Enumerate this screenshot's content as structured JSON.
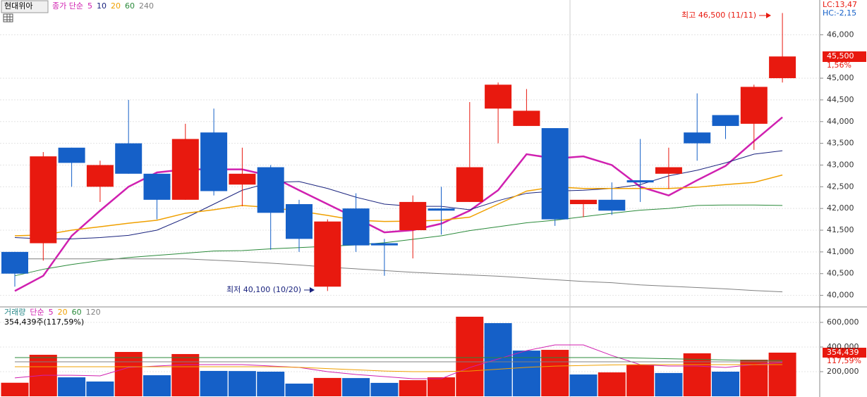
{
  "chart_data": [
    {
      "type": "candlestick",
      "title": "현대위아",
      "legend_prefix": "종가 단순",
      "open": [
        41000,
        41200,
        43400,
        42500,
        43500,
        42800,
        42200,
        43750,
        42550,
        42950,
        42100,
        40200,
        42000,
        41200,
        41500,
        42000,
        42150,
        44300,
        43900,
        43850,
        42100,
        42200,
        42650,
        42800,
        43750,
        44150,
        43950,
        45000
      ],
      "high": [
        41000,
        43300,
        43400,
        43100,
        44500,
        42800,
        43950,
        44300,
        43400,
        43000,
        42200,
        41750,
        42350,
        41300,
        42300,
        42500,
        44450,
        44900,
        44750,
        43850,
        42200,
        42600,
        43600,
        43400,
        44650,
        44150,
        44850,
        46500
      ],
      "low": [
        40200,
        40800,
        42500,
        42150,
        42800,
        41750,
        42200,
        42300,
        42050,
        41050,
        41000,
        40100,
        41000,
        40450,
        40850,
        41400,
        42150,
        43500,
        43900,
        41600,
        41800,
        41850,
        42150,
        42450,
        43100,
        43600,
        43350,
        44900
      ],
      "close": [
        40500,
        43200,
        43050,
        43000,
        42800,
        42200,
        43600,
        42400,
        42800,
        41900,
        41300,
        41700,
        41150,
        41150,
        42150,
        41950,
        42950,
        44850,
        44250,
        41750,
        42200,
        41950,
        42600,
        42950,
        43500,
        43900,
        44800,
        45500
      ],
      "up_color": "#e8190f",
      "down_color": "#1560c8",
      "series": [
        {
          "name": "5",
          "color": "#d020b0",
          "values": [
            40100,
            40450,
            41370,
            41950,
            42500,
            42830,
            42900,
            42900,
            42900,
            42750,
            42420,
            42100,
            41780,
            41450,
            41500,
            41650,
            41950,
            42420,
            43250,
            43150,
            43200,
            43000,
            42500,
            42300,
            42650,
            42980,
            43550,
            44100
          ]
        },
        {
          "name": "10",
          "color": "#1a237e",
          "values": [
            41330,
            41300,
            41300,
            41330,
            41380,
            41500,
            41780,
            42100,
            42420,
            42600,
            42620,
            42460,
            42260,
            42100,
            42050,
            42050,
            41970,
            42180,
            42350,
            42400,
            42420,
            42460,
            42550,
            42750,
            42880,
            43050,
            43250,
            43330
          ]
        },
        {
          "name": "20",
          "color": "#f0a000",
          "values": [
            41370,
            41390,
            41500,
            41580,
            41660,
            41730,
            41890,
            41970,
            42070,
            42020,
            41940,
            41840,
            41730,
            41700,
            41710,
            41730,
            41800,
            42100,
            42400,
            42500,
            42460,
            42460,
            42460,
            42460,
            42490,
            42550,
            42600,
            42770
          ]
        },
        {
          "name": "60",
          "color": "#2a8a3a",
          "values": [
            40450,
            40600,
            40710,
            40800,
            40870,
            40920,
            40970,
            41020,
            41030,
            41070,
            41100,
            41130,
            41160,
            41210,
            41290,
            41370,
            41490,
            41580,
            41670,
            41730,
            41810,
            41890,
            41960,
            42000,
            42070,
            42080,
            42080,
            42070
          ]
        },
        {
          "name": "240",
          "color": "#808080",
          "values": [
            40840,
            40840,
            40840,
            40840,
            40840,
            40840,
            40840,
            40810,
            40780,
            40740,
            40700,
            40650,
            40610,
            40570,
            40530,
            40500,
            40470,
            40440,
            40400,
            40360,
            40320,
            40290,
            40240,
            40210,
            40180,
            40150,
            40110,
            40080
          ]
        }
      ],
      "ylim": [
        39750,
        46800
      ],
      "yticks": [
        {
          "value": 40000,
          "label": "40,000"
        },
        {
          "value": 40500,
          "label": "40,500"
        },
        {
          "value": 41000,
          "label": "41,000"
        },
        {
          "value": 41500,
          "label": "41,500"
        },
        {
          "value": 42000,
          "label": "42,000"
        },
        {
          "value": 42500,
          "label": "42,500"
        },
        {
          "value": 43000,
          "label": "43,000"
        },
        {
          "value": 43500,
          "label": "43,500"
        },
        {
          "value": 44000,
          "label": "44,000"
        },
        {
          "value": 44500,
          "label": "44,500"
        },
        {
          "value": 45000,
          "label": "45,000"
        },
        {
          "value": 46000,
          "label": "46,000"
        }
      ],
      "grid": true,
      "annotations": [
        "최고 46,500 (11/11)",
        "최저 40,100 (10/20)"
      ],
      "stats": [
        "LC:13,47",
        "HC:-2,15"
      ],
      "last_label": {
        "value": 45500,
        "label": "45,500"
      },
      "change_label": "1,56%"
    },
    {
      "type": "volume",
      "title": "거래량",
      "legend_prefix": "단순",
      "values": [
        110000,
        337000,
        154000,
        120000,
        360000,
        171000,
        343000,
        206000,
        205000,
        200000,
        103000,
        149000,
        148000,
        109000,
        131000,
        154000,
        646000,
        594000,
        371000,
        377000,
        177000,
        194000,
        257000,
        189000,
        349000,
        200000,
        297000,
        354439
      ],
      "up_color": "#e8190f",
      "down_color": "#1560c8",
      "series": [
        {
          "name": "5",
          "color": "#d020b0",
          "values": [
            149000,
            171000,
            171000,
            166000,
            234000,
            246000,
            257000,
            257000,
            257000,
            246000,
            234000,
            200000,
            177000,
            160000,
            143000,
            143000,
            234000,
            303000,
            371000,
            417000,
            417000,
            331000,
            257000,
            246000,
            246000,
            234000,
            257000,
            274000
          ]
        },
        {
          "name": "20",
          "color": "#f0a000",
          "values": [
            240000,
            240000,
            240000,
            240000,
            240000,
            240000,
            240000,
            240000,
            240000,
            240000,
            235000,
            225000,
            215000,
            205000,
            200000,
            200000,
            205000,
            220000,
            235000,
            245000,
            250000,
            255000,
            257000,
            257000,
            257000,
            257000,
            257000,
            257000
          ]
        },
        {
          "name": "60",
          "color": "#2a8a3a",
          "values": [
            314000,
            314000,
            314000,
            314000,
            314000,
            314000,
            314000,
            314000,
            314000,
            314000,
            314000,
            314000,
            314000,
            314000,
            314000,
            314000,
            314000,
            314000,
            314000,
            314000,
            314000,
            314000,
            310000,
            305000,
            300000,
            295000,
            291000,
            291000
          ]
        },
        {
          "name": "120",
          "color": "#808080",
          "values": [
            280000,
            280000,
            280000,
            280000,
            280000,
            280000,
            280000,
            280000,
            280000,
            280000,
            280000,
            280000,
            280000,
            280000,
            280000,
            280000,
            280000,
            280000,
            280000,
            280000,
            280000,
            280000,
            280000,
            280000,
            280000,
            280000,
            280000,
            280000
          ]
        }
      ],
      "ylim": [
        0,
        720000
      ],
      "yticks": [
        {
          "value": 200000,
          "label": "200,000"
        },
        {
          "value": 400000,
          "label": "400,000"
        },
        {
          "value": 600000,
          "label": "600,000"
        }
      ],
      "grid": true,
      "info_label": "354,439주(117,59%)",
      "last_label": {
        "value": 354439,
        "label": "354,439"
      },
      "ratio_label": "117,59%"
    }
  ]
}
